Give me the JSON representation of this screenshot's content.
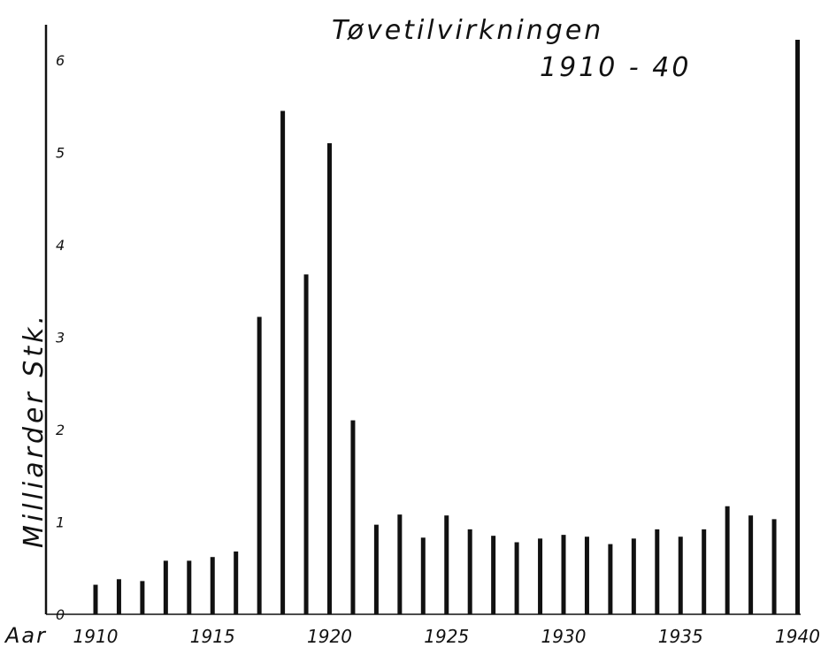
{
  "chart_data": {
    "type": "bar",
    "title": "Tøvetilvirkningen",
    "subtitle": "1910 - 40",
    "ylabel": "Milliarder Stk.",
    "xlabel": "Aar",
    "ylim": [
      0,
      6.3
    ],
    "yticks": [
      "0",
      "1",
      "2",
      "3",
      "4",
      "5",
      "6"
    ],
    "xticks": [
      "1910",
      "1915",
      "1920",
      "1925",
      "1930",
      "1935",
      "1940"
    ],
    "grid": false,
    "x": [
      1910,
      1911,
      1912,
      1913,
      1914,
      1915,
      1916,
      1917,
      1918,
      1919,
      1920,
      1921,
      1922,
      1923,
      1924,
      1925,
      1926,
      1927,
      1928,
      1929,
      1930,
      1931,
      1932,
      1933,
      1934,
      1935,
      1936,
      1937,
      1938,
      1939,
      1940
    ],
    "values": [
      0.32,
      0.38,
      0.36,
      0.58,
      0.58,
      0.62,
      0.68,
      3.22,
      5.45,
      3.68,
      5.1,
      2.1,
      0.97,
      1.08,
      0.83,
      1.07,
      0.92,
      0.85,
      0.78,
      0.82,
      0.86,
      0.84,
      0.76,
      0.82,
      0.92,
      0.84,
      0.92,
      1.17,
      1.07,
      1.03,
      6.22
    ]
  }
}
